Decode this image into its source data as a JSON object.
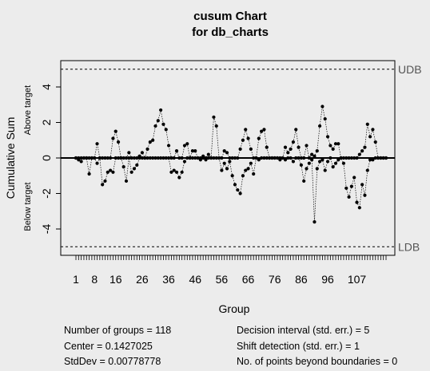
{
  "chart_data": {
    "type": "line",
    "title": "cusum Chart",
    "subtitle": "for db_charts",
    "xlabel": "Group",
    "ylabel": "Cumulative Sum",
    "ylabel_upper": "Above target",
    "ylabel_lower": "Below target",
    "xlim": [
      1,
      118
    ],
    "ylim": [
      -5.3,
      5.3
    ],
    "y_ticks": [
      -4,
      -2,
      0,
      2,
      4
    ],
    "x_tick_labels": [
      "1",
      "8",
      "16",
      "26",
      "36",
      "46",
      "56",
      "66",
      "76",
      "86",
      "96",
      "107"
    ],
    "x_tick_positions": [
      1,
      8,
      16,
      26,
      36,
      46,
      56,
      66,
      76,
      86,
      96,
      107
    ],
    "upper_limit": {
      "label": "UDB",
      "value": 5
    },
    "lower_limit": {
      "label": "LDB",
      "value": -5
    },
    "center_line": 0,
    "series": [
      {
        "role": "upper",
        "points": [
          [
            9,
            0.8
          ],
          [
            15,
            1.1
          ],
          [
            16,
            1.5
          ],
          [
            17,
            0.9
          ],
          [
            21,
            0.3
          ],
          [
            25,
            0.1
          ],
          [
            26,
            0.3
          ],
          [
            28,
            0.5
          ],
          [
            29,
            0.9
          ],
          [
            30,
            1.0
          ],
          [
            31,
            1.8
          ],
          [
            32,
            2.1
          ],
          [
            33,
            2.7
          ],
          [
            34,
            1.9
          ],
          [
            35,
            1.6
          ],
          [
            36,
            0.7
          ],
          [
            39,
            0.4
          ],
          [
            42,
            0.7
          ],
          [
            43,
            0.8
          ],
          [
            45,
            0.4
          ],
          [
            46,
            0.4
          ],
          [
            49,
            0.1
          ],
          [
            51,
            0.2
          ],
          [
            53,
            2.3
          ],
          [
            54,
            1.8
          ],
          [
            57,
            0.4
          ],
          [
            58,
            0.3
          ],
          [
            63,
            0.5
          ],
          [
            64,
            1.0
          ],
          [
            65,
            1.6
          ],
          [
            66,
            1.1
          ],
          [
            67,
            0.5
          ],
          [
            70,
            1.1
          ],
          [
            71,
            1.5
          ],
          [
            72,
            1.6
          ],
          [
            73,
            0.6
          ],
          [
            80,
            0.6
          ],
          [
            81,
            0.3
          ],
          [
            82,
            0.5
          ],
          [
            83,
            0.9
          ],
          [
            84,
            1.6
          ],
          [
            85,
            0.6
          ],
          [
            88,
            0.7
          ],
          [
            90,
            0.2
          ],
          [
            91,
            0.1
          ],
          [
            92,
            0.4
          ],
          [
            93,
            1.8
          ],
          [
            94,
            2.9
          ],
          [
            95,
            2.2
          ],
          [
            96,
            1.2
          ],
          [
            97,
            0.7
          ],
          [
            98,
            0.5
          ],
          [
            99,
            0.8
          ],
          [
            100,
            0.8
          ],
          [
            108,
            0.2
          ],
          [
            109,
            0.4
          ],
          [
            110,
            0.6
          ],
          [
            111,
            1.9
          ],
          [
            112,
            1.2
          ],
          [
            113,
            1.6
          ],
          [
            114,
            0.9
          ]
        ]
      },
      {
        "role": "lower",
        "points": [
          [
            2,
            -0.1
          ],
          [
            3,
            -0.2
          ],
          [
            6,
            -0.9
          ],
          [
            9,
            -0.3
          ],
          [
            11,
            -1.5
          ],
          [
            12,
            -1.3
          ],
          [
            13,
            -0.8
          ],
          [
            14,
            -0.7
          ],
          [
            15,
            -0.8
          ],
          [
            19,
            -0.5
          ],
          [
            20,
            -1.3
          ],
          [
            22,
            -0.8
          ],
          [
            23,
            -0.6
          ],
          [
            24,
            -0.4
          ],
          [
            37,
            -0.8
          ],
          [
            38,
            -0.7
          ],
          [
            39,
            -0.8
          ],
          [
            40,
            -1.1
          ],
          [
            41,
            -0.8
          ],
          [
            42,
            -0.2
          ],
          [
            48,
            -0.1
          ],
          [
            50,
            -0.1
          ],
          [
            56,
            -0.7
          ],
          [
            57,
            -0.3
          ],
          [
            58,
            -0.6
          ],
          [
            59,
            -0.2
          ],
          [
            60,
            -1.0
          ],
          [
            61,
            -1.5
          ],
          [
            62,
            -1.8
          ],
          [
            63,
            -2.0
          ],
          [
            64,
            -1.0
          ],
          [
            65,
            -0.7
          ],
          [
            66,
            -0.6
          ],
          [
            67,
            -0.3
          ],
          [
            68,
            -0.9
          ],
          [
            70,
            -0.1
          ],
          [
            78,
            -0.1
          ],
          [
            80,
            -0.1
          ],
          [
            83,
            -0.2
          ],
          [
            86,
            -0.4
          ],
          [
            87,
            -1.3
          ],
          [
            88,
            -0.6
          ],
          [
            89,
            -0.3
          ],
          [
            90,
            -0.1
          ],
          [
            91,
            -3.6
          ],
          [
            92,
            -0.6
          ],
          [
            93,
            -0.2
          ],
          [
            94,
            -0.1
          ],
          [
            95,
            -0.7
          ],
          [
            96,
            -0.2
          ],
          [
            98,
            -0.5
          ],
          [
            99,
            -0.3
          ],
          [
            100,
            -0.1
          ],
          [
            102,
            -0.3
          ],
          [
            103,
            -1.7
          ],
          [
            104,
            -2.2
          ],
          [
            105,
            -1.6
          ],
          [
            106,
            -1.1
          ],
          [
            107,
            -2.5
          ],
          [
            108,
            -2.8
          ],
          [
            109,
            -1.5
          ],
          [
            110,
            -2.1
          ],
          [
            111,
            -0.7
          ],
          [
            112,
            -0.1
          ],
          [
            113,
            -0.1
          ]
        ]
      }
    ]
  },
  "stats": {
    "left": [
      "Number of groups = 118",
      "Center = 0.1427025",
      "StdDev = 0.00778778"
    ],
    "right": [
      "Decision interval (std. err.) = 5",
      "Shift detection (std. err.) = 1",
      "No. of points beyond boundaries = 0"
    ]
  }
}
